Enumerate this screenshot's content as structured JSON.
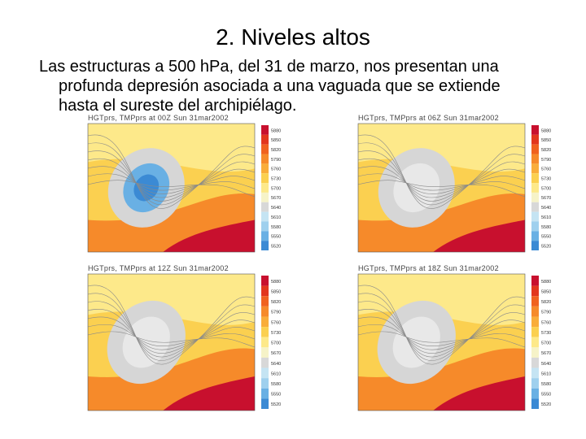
{
  "title": "2. Niveles altos",
  "paragraph": {
    "line1": "Las estructuras a 500 hPa, del 31 de marzo, nos presentan una",
    "line2": "profunda depresión asociada a una vaguada que se extiende",
    "line3": "hasta el sureste del archipiélago."
  },
  "panels": [
    {
      "caption": "HGTprs, TMPprs at 00Z Sun 31mar2002",
      "legend": [
        "5880",
        "5850",
        "5820",
        "5790",
        "5760",
        "5730",
        "5700",
        "5670",
        "5640",
        "5610",
        "5580",
        "5550",
        "5520"
      ],
      "palette": "cold"
    },
    {
      "caption": "HGTprs, TMPprs at 06Z Sun 31mar2002",
      "legend": [
        "5880",
        "5850",
        "5820",
        "5790",
        "5760",
        "5730",
        "5700",
        "5670",
        "5640",
        "5610",
        "5580",
        "5550",
        "5520"
      ],
      "palette": "warm"
    },
    {
      "caption": "HGTprs, TMPprs at 12Z Sun 31mar2002",
      "legend": [
        "5880",
        "5850",
        "5820",
        "5790",
        "5760",
        "5730",
        "5700",
        "5670",
        "5640",
        "5610",
        "5580",
        "5550",
        "5520"
      ],
      "palette": "warm"
    },
    {
      "caption": "HGTprs, TMPprs at 18Z Sun 31mar2002",
      "legend": [
        "5880",
        "5850",
        "5820",
        "5790",
        "5760",
        "5730",
        "5700",
        "5670",
        "5640",
        "5610",
        "5580",
        "5550",
        "5520"
      ],
      "palette": "warm"
    }
  ]
}
